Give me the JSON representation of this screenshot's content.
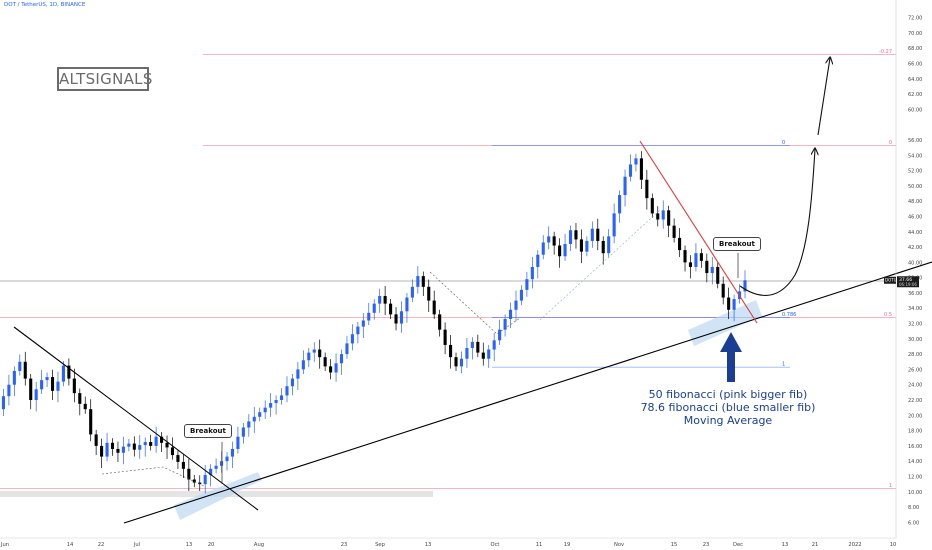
{
  "header": {
    "symbol": "DOT / TetherUS, 1D, BINANCE"
  },
  "logo": {
    "text": "ALTSIGNALS"
  },
  "callouts": [
    {
      "text": "Breakout"
    },
    {
      "text": "Breakout"
    }
  ],
  "annotation": {
    "lines": [
      "50 fibonacci (pink bigger fib)",
      "78.6 fibonacci (blue smaller fib)",
      "Moving Average"
    ]
  },
  "price_tag": {
    "label": "DOTUSDT",
    "value": "37.66",
    "timer": "06:19:06"
  },
  "colors": {
    "up": "#2962ff",
    "down": "#000000",
    "trendline": "#000000",
    "downtrend": "#e53935",
    "fib_pink": "#f06a8a",
    "fib_blue": "#2962ff",
    "zone": "#bcd8f2",
    "annotation": "#1a3e96"
  },
  "chart_data": {
    "type": "candlestick",
    "price_axis": {
      "ticks": [
        "6.00",
        "8.00",
        "10.00",
        "12.00",
        "14.00",
        "16.00",
        "18.00",
        "20.00",
        "22.00",
        "24.00",
        "26.00",
        "28.00",
        "30.00",
        "32.00",
        "34.00",
        "36.00",
        "38.00",
        "40.00",
        "42.00",
        "44.00",
        "46.00",
        "48.00",
        "50.00",
        "52.00",
        "54.00",
        "56.00",
        "60.00",
        "62.00",
        "64.00",
        "66.00",
        "68.00",
        "70.00",
        "72.00"
      ],
      "range": [
        5,
        73
      ]
    },
    "time_axis": {
      "labels": [
        "Jun",
        "14",
        "22",
        "Jul",
        "13",
        "20",
        "Aug",
        "23",
        "Sep",
        "13",
        "Oct",
        "11",
        "19",
        "Nov",
        "15",
        "23",
        "Dec",
        "13",
        "21",
        "2022",
        "10"
      ]
    },
    "fib_levels": [
      {
        "label": "-0.27",
        "value": 67.2,
        "color": "pink"
      },
      {
        "label": "0",
        "value": 55.3,
        "color": "pink"
      },
      {
        "label": "0",
        "value": 55.3,
        "color": "blue"
      },
      {
        "label": "0.5",
        "value": 32.8,
        "color": "pink"
      },
      {
        "label": "0.786",
        "value": 32.8,
        "color": "blue"
      },
      {
        "label": "1",
        "value": 26.3,
        "color": "blue"
      },
      {
        "label": "1",
        "value": 10.4,
        "color": "pink"
      }
    ],
    "current_price": 37.66,
    "closes": [
      20.8,
      22.5,
      24.0,
      25.8,
      27.0,
      24.8,
      22.0,
      23.4,
      24.6,
      25.0,
      23.2,
      24.4,
      26.5,
      24.8,
      22.9,
      21.5,
      20.8,
      17.5,
      16.0,
      14.6,
      16.4,
      15.6,
      15.1,
      15.9,
      16.3,
      15.5,
      16.1,
      16.5,
      16.0,
      17.2,
      16.4,
      15.8,
      14.8,
      13.9,
      13.0,
      11.6,
      11.2,
      11.0,
      12.2,
      13.0,
      13.4,
      14.0,
      14.6,
      15.6,
      17.2,
      18.4,
      19.2,
      19.8,
      20.4,
      21.0,
      21.6,
      22.0,
      22.6,
      23.8,
      24.8,
      26.0,
      27.2,
      28.2,
      28.6,
      27.6,
      26.4,
      25.6,
      26.8,
      28.0,
      29.4,
      30.6,
      31.6,
      32.4,
      33.4,
      34.6,
      35.6,
      34.6,
      33.2,
      32.0,
      33.6,
      35.4,
      36.8,
      38.2,
      36.8,
      35.0,
      33.2,
      31.2,
      29.2,
      27.6,
      26.4,
      27.4,
      28.8,
      29.6,
      28.2,
      27.4,
      28.6,
      29.8,
      31.2,
      32.6,
      33.8,
      35.0,
      36.4,
      37.8,
      39.4,
      41.0,
      42.6,
      43.4,
      42.2,
      40.8,
      42.4,
      44.2,
      43.0,
      41.4,
      42.8,
      44.4,
      42.8,
      41.2,
      43.4,
      46.4,
      48.8,
      51.2,
      52.8,
      53.6,
      50.8,
      48.4,
      46.4,
      45.6,
      46.8,
      44.8,
      43.2,
      41.6,
      40.0,
      39.4,
      41.2,
      40.2,
      38.6,
      39.4,
      37.2,
      35.4,
      33.8,
      35.2,
      36.2,
      37.66
    ]
  }
}
